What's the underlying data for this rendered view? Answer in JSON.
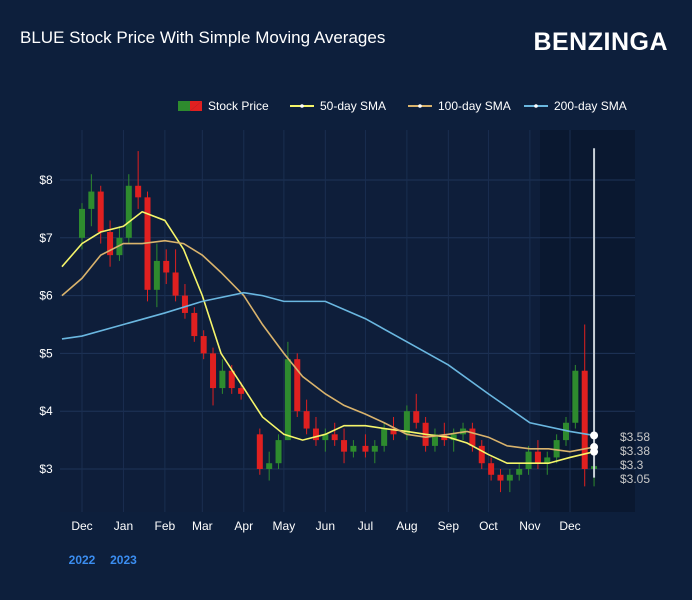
{
  "header": {
    "title": "BLUE Stock Price With Simple Moving Averages",
    "logo": "BENZINGA"
  },
  "chart_data": {
    "type": "candlestick+line",
    "title": "BLUE Stock Price With Simple Moving Averages",
    "ylim": [
      2.3,
      8.9
    ],
    "xlim": [
      "2022-11-16",
      "2024-01-18"
    ],
    "y_ticks": [
      "$3",
      "$4",
      "$5",
      "$6",
      "$7",
      "$8"
    ],
    "y_tick_values": [
      3,
      4,
      5,
      6,
      7,
      8
    ],
    "x_ticks": [
      "Dec",
      "Jan",
      "Feb",
      "Mar",
      "Apr",
      "May",
      "Jun",
      "Jul",
      "Aug",
      "Sep",
      "Oct",
      "Nov",
      "Dec"
    ],
    "x_tick_dates": [
      "2022-12-01",
      "2023-01-01",
      "2023-02-01",
      "2023-03-01",
      "2023-04-01",
      "2023-05-01",
      "2023-06-01",
      "2023-07-01",
      "2023-08-01",
      "2023-09-01",
      "2023-10-01",
      "2023-11-01",
      "2023-12-01"
    ],
    "year_labels": [
      "2022",
      "2023"
    ],
    "legend": {
      "placement": "top",
      "items": [
        "Stock Price",
        "50-day SMA",
        "100-day SMA",
        "200-day SMA"
      ]
    },
    "colors": {
      "up": "#2e8b2e",
      "down": "#e02020",
      "sma50": "#f5f56a",
      "sma100": "#d9b36c",
      "sma200": "#6ab7e0",
      "cursor": "#c8d0d8",
      "labels": "#c8c8c8"
    },
    "candles": [
      [
        "2022-12-01",
        7.0,
        7.6,
        6.8,
        7.5
      ],
      [
        "2022-12-08",
        7.5,
        8.1,
        7.2,
        7.8
      ],
      [
        "2022-12-15",
        7.8,
        7.9,
        6.9,
        7.1
      ],
      [
        "2022-12-22",
        7.1,
        7.3,
        6.5,
        6.7
      ],
      [
        "2022-12-29",
        6.7,
        7.2,
        6.6,
        7.0
      ],
      [
        "2023-01-05",
        7.0,
        8.1,
        6.9,
        7.9
      ],
      [
        "2023-01-12",
        7.9,
        8.5,
        7.5,
        7.7
      ],
      [
        "2023-01-19",
        7.7,
        7.8,
        5.9,
        6.1
      ],
      [
        "2023-01-26",
        6.1,
        6.9,
        5.8,
        6.6
      ],
      [
        "2023-02-02",
        6.6,
        6.8,
        6.2,
        6.4
      ],
      [
        "2023-02-09",
        6.4,
        6.8,
        5.9,
        6.0
      ],
      [
        "2023-02-16",
        6.0,
        6.2,
        5.6,
        5.7
      ],
      [
        "2023-02-23",
        5.7,
        5.8,
        5.2,
        5.3
      ],
      [
        "2023-03-02",
        5.3,
        5.4,
        4.9,
        5.0
      ],
      [
        "2023-03-09",
        5.0,
        5.1,
        4.1,
        4.4
      ],
      [
        "2023-03-16",
        4.4,
        4.9,
        4.3,
        4.7
      ],
      [
        "2023-03-23",
        4.7,
        4.8,
        4.3,
        4.4
      ],
      [
        "2023-03-30",
        4.4,
        4.5,
        4.2,
        4.3
      ],
      [
        "2023-04-13",
        3.6,
        3.7,
        2.9,
        3.0
      ],
      [
        "2023-04-20",
        3.0,
        3.3,
        2.8,
        3.1
      ],
      [
        "2023-04-27",
        3.1,
        3.6,
        3.0,
        3.5
      ],
      [
        "2023-05-04",
        3.5,
        5.2,
        3.5,
        4.9
      ],
      [
        "2023-05-11",
        4.9,
        5.0,
        3.9,
        4.0
      ],
      [
        "2023-05-18",
        4.0,
        4.2,
        3.6,
        3.7
      ],
      [
        "2023-05-25",
        3.7,
        3.9,
        3.4,
        3.5
      ],
      [
        "2023-06-01",
        3.5,
        3.7,
        3.3,
        3.6
      ],
      [
        "2023-06-08",
        3.6,
        3.8,
        3.4,
        3.5
      ],
      [
        "2023-06-15",
        3.5,
        3.7,
        3.1,
        3.3
      ],
      [
        "2023-06-22",
        3.3,
        3.5,
        3.2,
        3.4
      ],
      [
        "2023-07-01",
        3.4,
        3.6,
        3.2,
        3.3
      ],
      [
        "2023-07-08",
        3.3,
        3.5,
        3.1,
        3.4
      ],
      [
        "2023-07-15",
        3.4,
        3.8,
        3.3,
        3.7
      ],
      [
        "2023-07-22",
        3.7,
        3.9,
        3.5,
        3.6
      ],
      [
        "2023-08-01",
        3.6,
        4.1,
        3.5,
        4.0
      ],
      [
        "2023-08-08",
        4.0,
        4.3,
        3.7,
        3.8
      ],
      [
        "2023-08-15",
        3.8,
        3.9,
        3.3,
        3.4
      ],
      [
        "2023-08-22",
        3.4,
        3.7,
        3.3,
        3.6
      ],
      [
        "2023-08-29",
        3.6,
        3.8,
        3.4,
        3.5
      ],
      [
        "2023-09-05",
        3.5,
        3.7,
        3.3,
        3.6
      ],
      [
        "2023-09-12",
        3.6,
        3.8,
        3.5,
        3.7
      ],
      [
        "2023-09-19",
        3.7,
        3.8,
        3.3,
        3.4
      ],
      [
        "2023-09-26",
        3.4,
        3.5,
        3.0,
        3.1
      ],
      [
        "2023-10-03",
        3.1,
        3.2,
        2.8,
        2.9
      ],
      [
        "2023-10-10",
        2.9,
        3.0,
        2.6,
        2.8
      ],
      [
        "2023-10-17",
        2.8,
        3.0,
        2.6,
        2.9
      ],
      [
        "2023-10-24",
        2.9,
        3.1,
        2.8,
        3.0
      ],
      [
        "2023-10-31",
        3.0,
        3.4,
        2.9,
        3.3
      ],
      [
        "2023-11-07",
        3.3,
        3.5,
        3.0,
        3.1
      ],
      [
        "2023-11-14",
        3.1,
        3.3,
        2.9,
        3.2
      ],
      [
        "2023-11-21",
        3.2,
        3.6,
        3.1,
        3.5
      ],
      [
        "2023-11-28",
        3.5,
        3.9,
        3.4,
        3.8
      ],
      [
        "2023-12-05",
        3.8,
        4.8,
        3.7,
        4.7
      ],
      [
        "2023-12-12",
        4.7,
        5.5,
        2.7,
        3.0
      ],
      [
        "2023-12-19",
        3.0,
        3.2,
        2.7,
        3.05
      ]
    ],
    "series": [
      {
        "name": "50-day SMA",
        "points": [
          [
            "2022-11-16",
            6.5
          ],
          [
            "2022-12-01",
            6.9
          ],
          [
            "2022-12-15",
            7.1
          ],
          [
            "2023-01-01",
            7.2
          ],
          [
            "2023-01-15",
            7.45
          ],
          [
            "2023-02-01",
            7.3
          ],
          [
            "2023-02-15",
            6.8
          ],
          [
            "2023-03-01",
            6.0
          ],
          [
            "2023-03-15",
            5.0
          ],
          [
            "2023-04-01",
            4.4
          ],
          [
            "2023-04-15",
            3.9
          ],
          [
            "2023-05-01",
            3.6
          ],
          [
            "2023-05-15",
            3.5
          ],
          [
            "2023-06-01",
            3.6
          ],
          [
            "2023-06-15",
            3.75
          ],
          [
            "2023-07-01",
            3.75
          ],
          [
            "2023-07-15",
            3.7
          ],
          [
            "2023-08-01",
            3.65
          ],
          [
            "2023-08-15",
            3.6
          ],
          [
            "2023-09-01",
            3.55
          ],
          [
            "2023-09-15",
            3.45
          ],
          [
            "2023-10-01",
            3.25
          ],
          [
            "2023-10-15",
            3.1
          ],
          [
            "2023-11-01",
            3.1
          ],
          [
            "2023-11-15",
            3.1
          ],
          [
            "2023-12-01",
            3.2
          ],
          [
            "2023-12-19",
            3.3
          ]
        ]
      },
      {
        "name": "100-day SMA",
        "points": [
          [
            "2022-11-16",
            6.0
          ],
          [
            "2022-12-01",
            6.3
          ],
          [
            "2022-12-15",
            6.7
          ],
          [
            "2023-01-01",
            6.9
          ],
          [
            "2023-01-15",
            6.9
          ],
          [
            "2023-02-01",
            6.95
          ],
          [
            "2023-02-15",
            6.9
          ],
          [
            "2023-03-01",
            6.7
          ],
          [
            "2023-03-15",
            6.4
          ],
          [
            "2023-04-01",
            6.0
          ],
          [
            "2023-04-15",
            5.5
          ],
          [
            "2023-05-01",
            5.0
          ],
          [
            "2023-05-15",
            4.6
          ],
          [
            "2023-06-01",
            4.3
          ],
          [
            "2023-06-15",
            4.1
          ],
          [
            "2023-07-01",
            3.95
          ],
          [
            "2023-07-15",
            3.8
          ],
          [
            "2023-08-01",
            3.6
          ],
          [
            "2023-08-15",
            3.55
          ],
          [
            "2023-09-01",
            3.6
          ],
          [
            "2023-09-15",
            3.65
          ],
          [
            "2023-10-01",
            3.55
          ],
          [
            "2023-10-15",
            3.4
          ],
          [
            "2023-11-01",
            3.35
          ],
          [
            "2023-11-15",
            3.35
          ],
          [
            "2023-12-01",
            3.3
          ],
          [
            "2023-12-19",
            3.38
          ]
        ]
      },
      {
        "name": "200-day SMA",
        "points": [
          [
            "2022-11-16",
            5.25
          ],
          [
            "2022-12-01",
            5.3
          ],
          [
            "2023-01-01",
            5.5
          ],
          [
            "2023-02-01",
            5.7
          ],
          [
            "2023-03-01",
            5.9
          ],
          [
            "2023-04-01",
            6.05
          ],
          [
            "2023-04-15",
            6.0
          ],
          [
            "2023-05-01",
            5.9
          ],
          [
            "2023-06-01",
            5.9
          ],
          [
            "2023-07-01",
            5.6
          ],
          [
            "2023-08-01",
            5.2
          ],
          [
            "2023-09-01",
            4.8
          ],
          [
            "2023-10-01",
            4.3
          ],
          [
            "2023-11-01",
            3.8
          ],
          [
            "2023-12-01",
            3.65
          ],
          [
            "2023-12-19",
            3.58
          ]
        ]
      }
    ],
    "hover": {
      "date": "2023-12-19",
      "labels": [
        "$3.58",
        "$3.38",
        "$3.3",
        "$3.05"
      ],
      "values": [
        3.58,
        3.38,
        3.3,
        3.05
      ]
    }
  }
}
